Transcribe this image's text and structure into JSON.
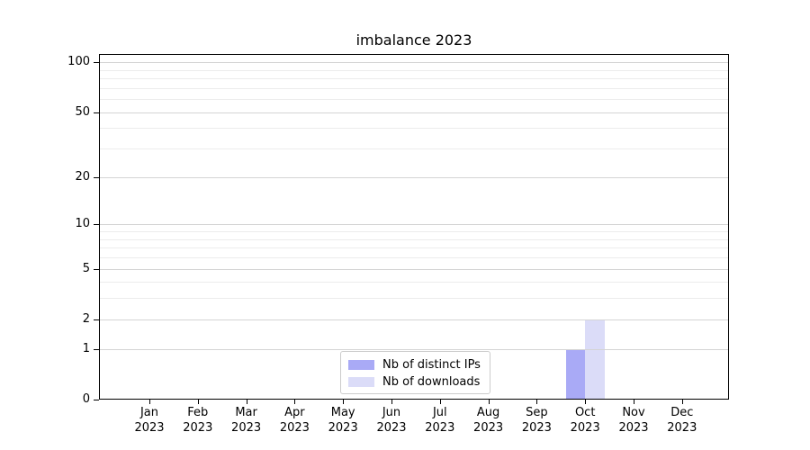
{
  "figure": {
    "background": "#ffffff",
    "text_color": "#000000"
  },
  "chart_data": {
    "type": "bar",
    "title": "imbalance 2023",
    "x": {
      "months": [
        "Jan",
        "Feb",
        "Mar",
        "Apr",
        "May",
        "Jun",
        "Jul",
        "Aug",
        "Sep",
        "Oct",
        "Nov",
        "Dec"
      ],
      "year": "2023"
    },
    "series": [
      {
        "name": "Nb of distinct IPs",
        "color": "#a9aaf6",
        "values": [
          0,
          0,
          0,
          0,
          0,
          0,
          0,
          0,
          0,
          1,
          0,
          0
        ]
      },
      {
        "name": "Nb of downloads",
        "color": "#dbdcf8",
        "values": [
          0,
          0,
          0,
          0,
          0,
          0,
          0,
          0,
          0,
          2,
          0,
          0
        ]
      }
    ],
    "y_axis": {
      "scale": "log10(1+v)",
      "major_ticks": [
        0,
        1,
        2,
        5,
        10,
        20,
        50,
        100
      ],
      "minor_gridlines": [
        3,
        4,
        6,
        7,
        8,
        9,
        30,
        40,
        60,
        70,
        80,
        90
      ],
      "ylim": [
        0,
        112
      ]
    },
    "grid": {
      "major_color": "#d4d4d4",
      "minor_color": "#ececec"
    },
    "legend": {
      "position": "lower center",
      "entries": [
        "Nb of distinct IPs",
        "Nb of downloads"
      ]
    }
  }
}
